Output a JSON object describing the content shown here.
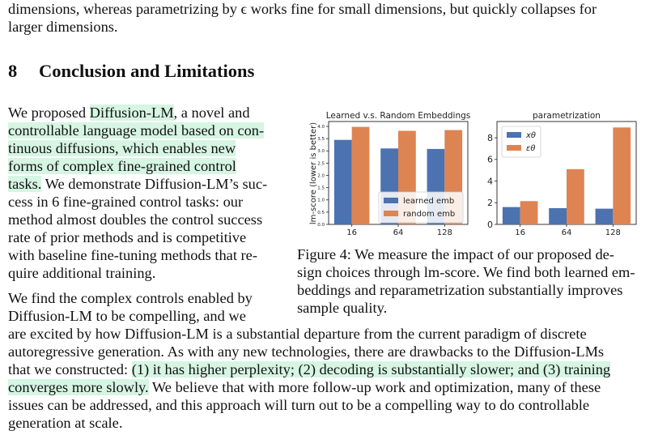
{
  "intro_lines": [
    "dimensions, whereas parametrizing by ϵ works fine for small dimensions, but quickly collapses for",
    "larger dimensions."
  ],
  "section": {
    "number": "8",
    "title": "Conclusion and Limitations"
  },
  "left_col": {
    "l1a": "We proposed ",
    "l1b": "Diffusion-LM",
    "l1c": ", a novel and",
    "l2": "controllable language model based on con-",
    "l3": "tinuous diffusions, which enables new",
    "l4": "forms of complex fine-grained control",
    "l5a": "tasks.",
    "l5b": " We demonstrate Diffusion-LM’s suc-",
    "l6": "cess in 6 fine-grained control tasks: our",
    "l7": "method almost doubles the control success",
    "l8": "rate of prior methods and is competitive",
    "l9": "with baseline fine-tuning methods that re-",
    "l10": "quire additional training.",
    "p2_l1": "We find the complex controls enabled by",
    "p2_l2": "Diffusion-LM to be compelling, and we"
  },
  "full_lines": {
    "f1": "are excited by how Diffusion-LM is a substantial departure from the current paradigm of discrete",
    "f2": "autoregressive generation. As with any new technologies, there are drawbacks to the Diffusion-LMs",
    "f3a": "that we constructed: ",
    "f3b": "(1) it has higher perplexity; (2) decoding is substantially slower; and (3) training",
    "f4a": "converges more slowly.",
    "f4b": " We believe that with more follow-up work and optimization, many of these",
    "f5": "issues can be addressed, and this approach will turn out to be a compelling way to do controllable",
    "f6": "generation at scale."
  },
  "caption_lines": [
    "Figure 4:  We measure the impact of our proposed de-",
    "sign choices through lm-score. We find both learned em-",
    "beddings and reparametrization substantially improves",
    "sample quality."
  ],
  "chart_data": [
    {
      "type": "bar",
      "title": "Learned v.s. Random Embeddings",
      "ylabel": "lm-score (lower is better)",
      "categories": [
        "16",
        "64",
        "128"
      ],
      "series": [
        {
          "name": "learned emb",
          "values": [
            3.45,
            3.1,
            3.08
          ],
          "color": "#4c72b0"
        },
        {
          "name": "random emb",
          "values": [
            3.98,
            3.82,
            3.85
          ],
          "color": "#dd8452"
        }
      ],
      "ylim": [
        0,
        4.2
      ],
      "yticks": [
        "0.0",
        "0.5",
        "1.0",
        "1.5",
        "2.0",
        "2.5",
        "3.0",
        "3.5",
        "4.0"
      ],
      "legend": "lower-right"
    },
    {
      "type": "bar",
      "title": "parametrization",
      "categories": [
        "16",
        "64",
        "128"
      ],
      "series": [
        {
          "name": "xθ",
          "values": [
            1.6,
            1.5,
            1.45
          ],
          "color": "#4c72b0"
        },
        {
          "name": "εθ",
          "values": [
            2.15,
            5.1,
            8.95
          ],
          "color": "#dd8452"
        }
      ],
      "ylim": [
        0,
        9.5
      ],
      "yticks": [
        "0",
        "2",
        "4",
        "6",
        "8"
      ],
      "legend": "upper-left"
    }
  ]
}
